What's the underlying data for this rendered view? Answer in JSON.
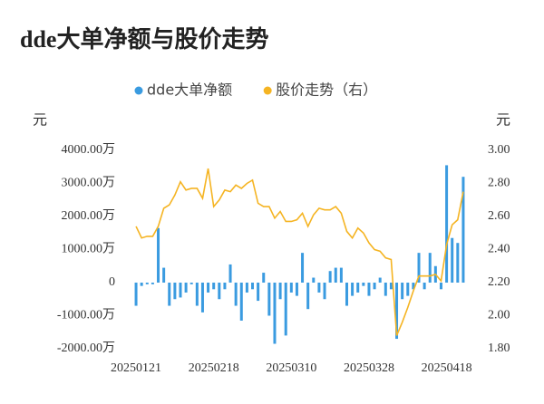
{
  "chart_data": {
    "type": "bar-line",
    "title": "dde大单净额与股价走势",
    "y_unit": "元",
    "y2_unit": "元",
    "categories": [
      "20250121",
      null,
      null,
      null,
      null,
      null,
      null,
      null,
      null,
      null,
      null,
      null,
      null,
      null,
      "20250218",
      null,
      null,
      null,
      null,
      null,
      null,
      null,
      null,
      null,
      null,
      null,
      null,
      null,
      "20250310",
      null,
      null,
      null,
      null,
      null,
      null,
      null,
      null,
      null,
      null,
      null,
      null,
      null,
      "20250328",
      null,
      null,
      null,
      null,
      null,
      null,
      null,
      null,
      null,
      null,
      null,
      null,
      null,
      "20250418",
      null,
      null,
      null
    ],
    "series": [
      {
        "name": "dde大单净额",
        "type": "bar",
        "color": "#3a9be0",
        "values": [
          -700,
          -100,
          -50,
          -50,
          1650,
          450,
          -700,
          -500,
          -450,
          -300,
          -50,
          -700,
          -900,
          -300,
          -200,
          -500,
          -200,
          550,
          -700,
          -1150,
          -300,
          -200,
          -550,
          300,
          -1000,
          -1850,
          -500,
          -1600,
          -300,
          -400,
          900,
          -800,
          150,
          -300,
          -500,
          350,
          450,
          450,
          -700,
          -400,
          -300,
          -100,
          -400,
          -200,
          150,
          -400,
          -200,
          -1700,
          -500,
          -400,
          -200,
          900,
          -200,
          900,
          500,
          -200,
          3550,
          1350,
          1200,
          3200
        ]
      },
      {
        "name": "股价走势（右）",
        "type": "line",
        "axis": "y2",
        "color": "#f5b422",
        "values": [
          2.54,
          2.47,
          2.48,
          2.48,
          2.54,
          2.65,
          2.67,
          2.73,
          2.81,
          2.76,
          2.77,
          2.77,
          2.71,
          2.89,
          2.66,
          2.7,
          2.76,
          2.75,
          2.79,
          2.77,
          2.8,
          2.82,
          2.68,
          2.66,
          2.66,
          2.59,
          2.63,
          2.57,
          2.57,
          2.58,
          2.62,
          2.54,
          2.61,
          2.65,
          2.64,
          2.64,
          2.66,
          2.62,
          2.51,
          2.47,
          2.53,
          2.5,
          2.44,
          2.4,
          2.39,
          2.35,
          2.34,
          1.88,
          1.96,
          2.05,
          2.15,
          2.24,
          2.24,
          2.24,
          2.25,
          2.21,
          2.43,
          2.55,
          2.58,
          2.75
        ]
      }
    ],
    "ylim": [
      -2000,
      4000
    ],
    "yticks": [
      {
        "value": 4000,
        "label": "4000.00万"
      },
      {
        "value": 3000,
        "label": "3000.00万"
      },
      {
        "value": 2000,
        "label": "2000.00万"
      },
      {
        "value": 1000,
        "label": "1000.00万"
      },
      0,
      {
        "value": -1000,
        "label": "-1000.00万"
      },
      {
        "value": -2000,
        "label": "-2000.00万"
      }
    ],
    "y2lim": [
      1.8,
      3.0
    ],
    "y2ticks": [
      {
        "value": 3.0,
        "label": "3.00"
      },
      {
        "value": 2.8,
        "label": "2.80"
      },
      {
        "value": 2.6,
        "label": "2.60"
      },
      {
        "value": 2.4,
        "label": "2.40"
      },
      {
        "value": 2.2,
        "label": "2.20"
      },
      {
        "value": 2.0,
        "label": "2.00"
      },
      {
        "value": 1.8,
        "label": "1.80"
      }
    ]
  }
}
